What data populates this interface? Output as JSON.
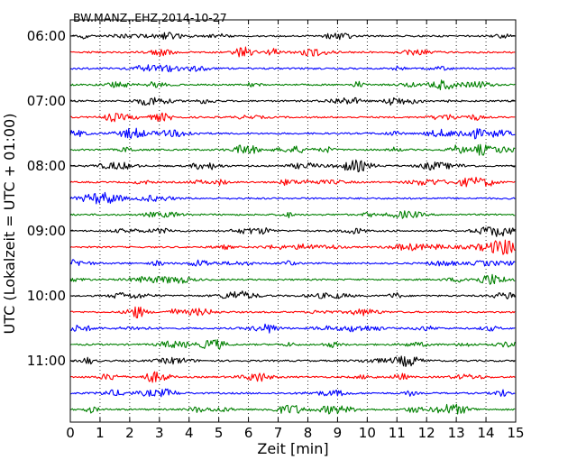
{
  "chart_data": {
    "type": "line",
    "title": "BW.MANZ..EHZ 2014-10-27",
    "xlabel": "Zeit  [min]",
    "ylabel": "UTC (Lokalzeit = UTC + 01:00)",
    "xlim": [
      0,
      15
    ],
    "x_ticks": [
      0,
      1,
      2,
      3,
      4,
      5,
      6,
      7,
      8,
      9,
      10,
      11,
      12,
      13,
      14,
      15
    ],
    "x_tick_labels": [
      "0",
      "1",
      "2",
      "3",
      "4",
      "5",
      "6",
      "7",
      "8",
      "9",
      "10",
      "11",
      "12",
      "13",
      "14",
      "15"
    ],
    "y_tick_labels": [
      "06:00",
      "07:00",
      "08:00",
      "09:00",
      "10:00",
      "11:00"
    ],
    "grid": {
      "x": "dotted"
    },
    "series_colors": [
      "#000000",
      "#ff0000",
      "#0000ff",
      "#008000"
    ],
    "series": [
      {
        "start": "06:00"
      },
      {
        "start": "06:15"
      },
      {
        "start": "06:30"
      },
      {
        "start": "06:45"
      },
      {
        "start": "07:00"
      },
      {
        "start": "07:15"
      },
      {
        "start": "07:30"
      },
      {
        "start": "07:45"
      },
      {
        "start": "08:00"
      },
      {
        "start": "08:15"
      },
      {
        "start": "08:30"
      },
      {
        "start": "08:45"
      },
      {
        "start": "09:00"
      },
      {
        "start": "09:15"
      },
      {
        "start": "09:30"
      },
      {
        "start": "09:45"
      },
      {
        "start": "10:00"
      },
      {
        "start": "10:15"
      },
      {
        "start": "10:30"
      },
      {
        "start": "10:45"
      },
      {
        "start": "11:00"
      },
      {
        "start": "11:15"
      },
      {
        "start": "11:30"
      },
      {
        "start": "11:45"
      }
    ]
  }
}
